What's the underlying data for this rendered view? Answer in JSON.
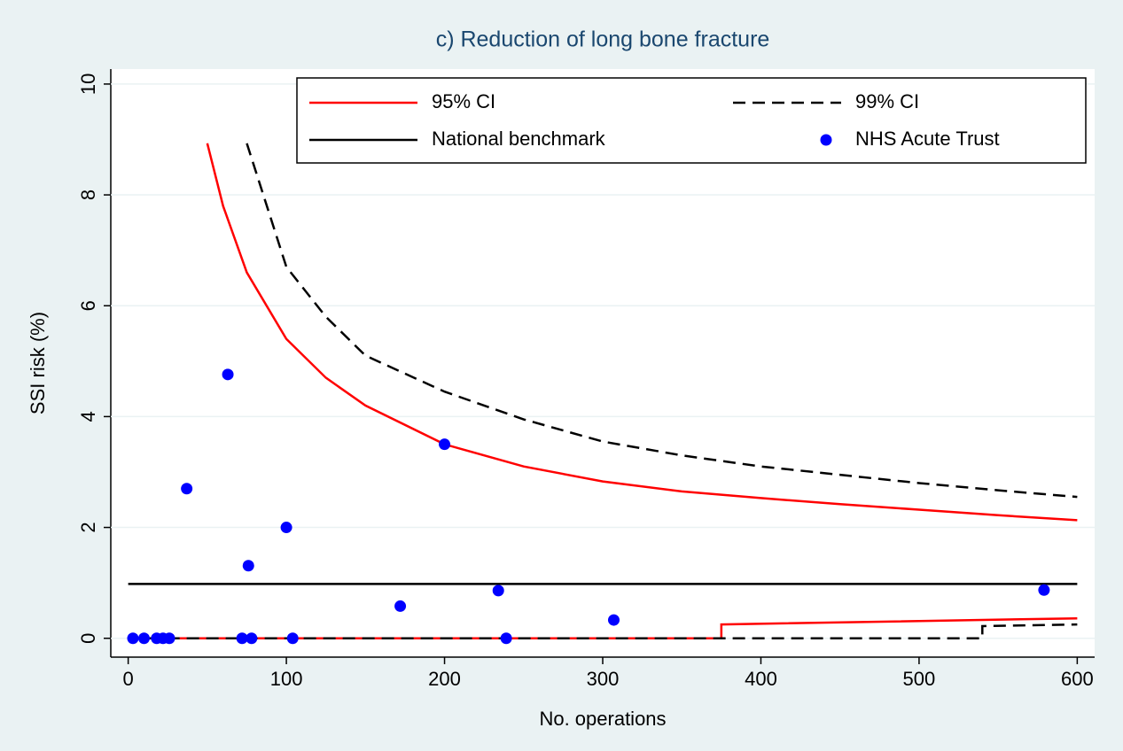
{
  "chart_data": {
    "type": "line",
    "title": "c) Reduction of long bone fracture",
    "xlabel": "No. operations",
    "ylabel": "SSI risk (%)",
    "xlim": [
      -11,
      611
    ],
    "ylim": [
      -0.34,
      10.27
    ],
    "xticks": [
      0,
      100,
      200,
      300,
      400,
      500,
      600
    ],
    "yticks": [
      0,
      2,
      4,
      6,
      8,
      10
    ],
    "grid": true,
    "legend": "top-right",
    "series": [
      {
        "name": "95% CI",
        "color": "#ff0000",
        "mode": "line",
        "dash": false,
        "x": [
          50,
          60,
          75,
          100,
          125,
          150,
          200,
          250,
          300,
          350,
          400,
          450,
          500,
          550,
          600,
          null,
          0,
          375,
          375,
          600
        ],
        "values": [
          8.93,
          7.8,
          6.6,
          5.4,
          4.7,
          4.2,
          3.5,
          3.1,
          2.83,
          2.65,
          2.53,
          2.42,
          2.32,
          2.22,
          2.13,
          null,
          0,
          0,
          0.25,
          0.36
        ]
      },
      {
        "name": "99% CI",
        "color": "#000000",
        "mode": "line",
        "dash": true,
        "x": [
          75,
          100,
          125,
          150,
          200,
          250,
          300,
          350,
          400,
          450,
          500,
          550,
          600,
          null,
          0,
          540,
          540,
          600
        ],
        "values": [
          8.93,
          6.7,
          5.8,
          5.1,
          4.45,
          3.95,
          3.55,
          3.3,
          3.1,
          2.95,
          2.8,
          2.67,
          2.55,
          null,
          0,
          0,
          0.22,
          0.25
        ]
      },
      {
        "name": "National benchmark",
        "color": "#000000",
        "mode": "line",
        "dash": false,
        "x": [
          0,
          600
        ],
        "values": [
          0.98,
          0.98
        ]
      },
      {
        "name": "NHS Acute Trust",
        "color": "#0000ff",
        "mode": "marker",
        "x": [
          3,
          10,
          18,
          22,
          26,
          37,
          63,
          72,
          76,
          78,
          100,
          104,
          172,
          200,
          234,
          239,
          307,
          579
        ],
        "values": [
          0,
          0,
          0,
          0,
          0,
          2.7,
          4.76,
          0,
          1.31,
          0,
          2.0,
          0,
          0.58,
          3.5,
          0.86,
          0,
          0.33,
          0.87
        ]
      }
    ]
  }
}
